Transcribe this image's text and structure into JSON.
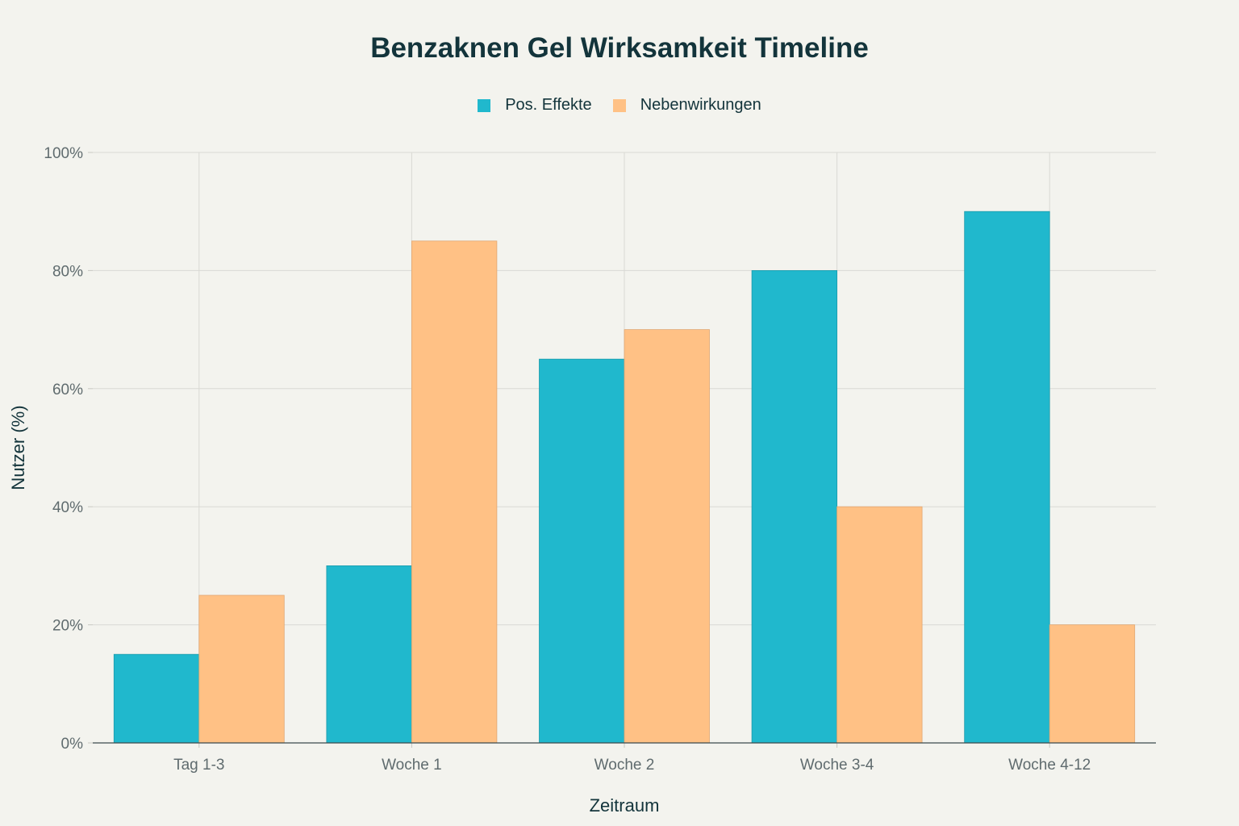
{
  "chart_data": {
    "type": "bar",
    "title": "Benzaknen Gel Wirksamkeit Timeline",
    "xlabel": "Zeitraum",
    "ylabel": "Nutzer (%)",
    "categories": [
      "Tag 1-3",
      "Woche 1",
      "Woche 2",
      "Woche 3-4",
      "Woche 4-12"
    ],
    "series": [
      {
        "name": "Pos. Effekte",
        "color": "#20b8cd",
        "values": [
          15,
          30,
          65,
          80,
          90
        ]
      },
      {
        "name": "Nebenwirkungen",
        "color": "#ffc185",
        "values": [
          25,
          85,
          70,
          40,
          20
        ]
      }
    ],
    "ylim": [
      0,
      100
    ],
    "yticks": [
      0,
      20,
      40,
      60,
      80,
      100
    ],
    "ytick_labels": [
      "0%",
      "20%",
      "40%",
      "60%",
      "80%",
      "100%"
    ],
    "grid": true,
    "legend_position": "top-center"
  }
}
